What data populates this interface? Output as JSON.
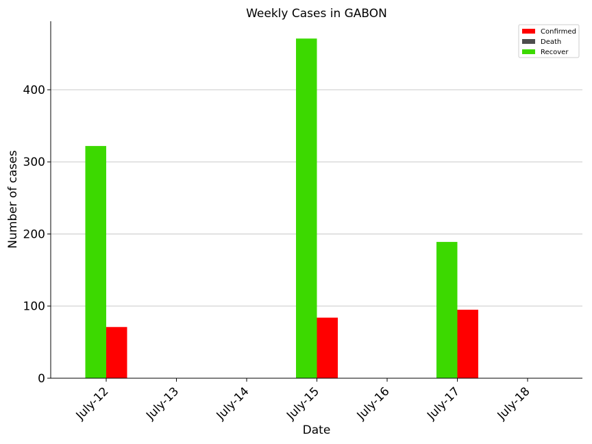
{
  "chart_data": {
    "type": "bar",
    "title": "Weekly Cases in GABON",
    "xlabel": "Date",
    "ylabel": "Number of cases",
    "categories": [
      "July-12",
      "July-13",
      "July-14",
      "July-15",
      "July-16",
      "July-17",
      "July-18"
    ],
    "ylim": [
      0,
      495
    ],
    "yticks": [
      0,
      100,
      200,
      300,
      400
    ],
    "grid": "horizontal",
    "legend_position": "top-right",
    "series": [
      {
        "name": "Confirmed",
        "color": "#ff0000",
        "values": [
          71,
          0,
          0,
          84,
          0,
          95,
          0
        ]
      },
      {
        "name": "Death",
        "color": "#4d4d4d",
        "values": [
          0,
          0,
          0,
          0,
          0,
          0,
          0
        ]
      },
      {
        "name": "Recover",
        "color": "#3cd900",
        "values": [
          322,
          0,
          0,
          471,
          0,
          189,
          0
        ]
      }
    ]
  }
}
